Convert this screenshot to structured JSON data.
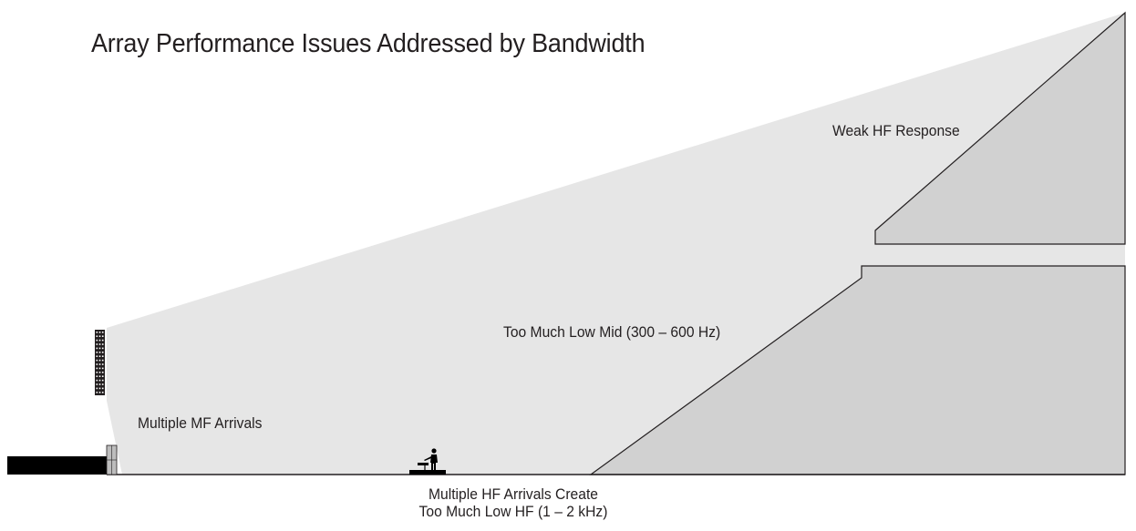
{
  "title": "Array Performance Issues Addressed by Bandwidth",
  "labels": {
    "weak_hf": "Weak HF Response",
    "low_mid": "Too Much Low Mid (300 – 600 Hz)",
    "multiple_mf": "Multiple MF Arrivals",
    "multiple_hf_line1": "Multiple HF Arrivals Create",
    "multiple_hf_line2": "Too Much Low HF (1 – 2 kHz)"
  },
  "colors": {
    "coverage": "#e6e6e6",
    "seating": "#d1d1d1",
    "outline": "#231f20",
    "stage": "#000000",
    "text": "#231f20"
  }
}
